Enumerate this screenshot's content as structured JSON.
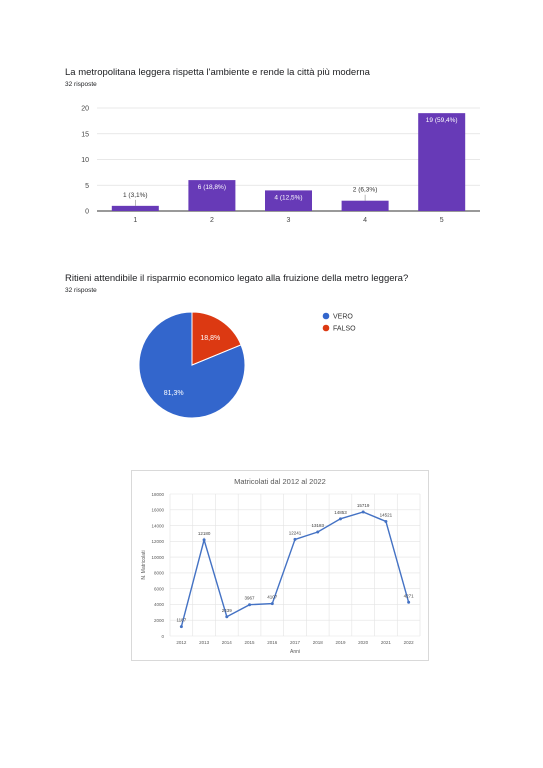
{
  "chart_data": [
    {
      "type": "bar",
      "title": "La metropolitana leggera rispetta l'ambiente e rende la città più moderna",
      "subtitle": "32 risposte",
      "categories": [
        "1",
        "2",
        "3",
        "4",
        "5"
      ],
      "values": [
        1,
        6,
        4,
        2,
        19
      ],
      "data_labels": [
        "1 (3,1%)",
        "6 (18,8%)",
        "4 (12,5%)",
        "2 (6,3%)",
        "19 (59,4%)"
      ],
      "yticks": [
        "0",
        "5",
        "10",
        "15",
        "20"
      ],
      "ylim": [
        0,
        20
      ],
      "grid": true,
      "color": "#673ab7"
    },
    {
      "type": "pie",
      "title": "Ritieni attendibile il risparmio economico legato alla fruizione della metro leggera?",
      "subtitle": "32 risposte",
      "slices": [
        {
          "name": "VERO",
          "value": 81.3,
          "label": "81,3%",
          "color": "#3366cc"
        },
        {
          "name": "FALSO",
          "value": 18.8,
          "label": "18,8%",
          "color": "#dc3912"
        }
      ],
      "legend_position": "right"
    },
    {
      "type": "line",
      "title": "Matricolati dal 2012 al 2022",
      "xlabel": "Anni",
      "ylabel": "N. Matricolati",
      "x": [
        "2012",
        "2013",
        "2014",
        "2015",
        "2016",
        "2017",
        "2018",
        "2019",
        "2020",
        "2021",
        "2022"
      ],
      "values": [
        1187,
        12180,
        2439,
        3967,
        4107,
        12241,
        13183,
        14853,
        15719,
        14521,
        4271
      ],
      "data_labels": [
        "1187",
        "12180",
        "2439",
        "3967",
        "4107",
        "12241",
        "13183",
        "14853",
        "15719",
        "14521",
        "4271"
      ],
      "yticks": [
        "0",
        "2000",
        "4000",
        "6000",
        "8000",
        "10000",
        "12000",
        "14000",
        "16000",
        "18000"
      ],
      "ylim": [
        0,
        18000
      ],
      "grid": true,
      "color": "#4472c4"
    }
  ]
}
